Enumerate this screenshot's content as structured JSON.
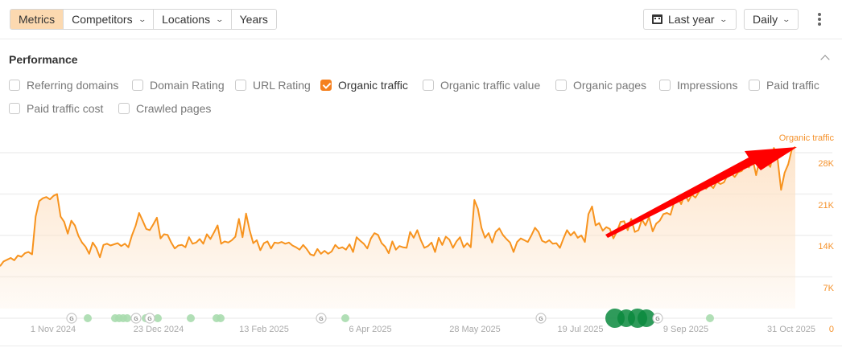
{
  "toolbar": {
    "tabs": [
      {
        "label": "Metrics",
        "active": true,
        "dropdown": false
      },
      {
        "label": "Competitors",
        "active": false,
        "dropdown": true
      },
      {
        "label": "Locations",
        "active": false,
        "dropdown": true
      },
      {
        "label": "Years",
        "active": false,
        "dropdown": false
      }
    ],
    "date_range": {
      "icon": "calendar-icon",
      "label": "Last year"
    },
    "interval": {
      "label": "Daily"
    },
    "more_icon": "kebab-menu-icon"
  },
  "performance": {
    "title": "Performance",
    "collapse_icon": "chevron-up-icon",
    "metrics": [
      {
        "label": "Referring domains",
        "checked": false
      },
      {
        "label": "Domain Rating",
        "checked": false
      },
      {
        "label": "URL Rating",
        "checked": false
      },
      {
        "label": "Organic traffic",
        "checked": true
      },
      {
        "label": "Organic traffic value",
        "checked": false
      },
      {
        "label": "Organic pages",
        "checked": false
      },
      {
        "label": "Impressions",
        "checked": false
      },
      {
        "label": "Paid traffic",
        "checked": false
      },
      {
        "label": "Paid traffic cost",
        "checked": false
      },
      {
        "label": "Crawled pages",
        "checked": false
      }
    ]
  },
  "colors": {
    "accent": "#f5801f",
    "line": "#f7931e",
    "fill": "#fde3c8",
    "annotation_arrow": "#ff0000",
    "event_green": "#0b8a3e",
    "event_green_light": "#a9dcae"
  },
  "chart_data": {
    "type": "area",
    "title": "",
    "series": [
      {
        "name": "Organic traffic",
        "values": [
          8800,
          9600,
          9900,
          10200,
          9800,
          10600,
          10400,
          11000,
          11200,
          10800,
          17200,
          19800,
          20300,
          20500,
          20100,
          20700,
          21000,
          17200,
          16300,
          14300,
          16500,
          15700,
          13900,
          12800,
          12100,
          10900,
          12800,
          11900,
          10300,
          12400,
          12600,
          12300,
          12500,
          12700,
          12200,
          12600,
          12000,
          14000,
          15600,
          17800,
          16500,
          15100,
          14900,
          15900,
          17000,
          13500,
          14200,
          14100,
          12800,
          11800,
          12300,
          12400,
          12000,
          13700,
          12600,
          12800,
          13400,
          12600,
          14200,
          13400,
          14500,
          15700,
          12600,
          13000,
          12800,
          13200,
          13800,
          16800,
          13700,
          17700,
          14900,
          12700,
          13200,
          11500,
          12700,
          13000,
          11800,
          12800,
          12700,
          12900,
          12600,
          12800,
          12300,
          12000,
          11600,
          12400,
          11700,
          10800,
          10600,
          11700,
          10900,
          11400,
          10900,
          11300,
          12400,
          11800,
          12000,
          11600,
          12500,
          11200,
          13700,
          13100,
          12600,
          11800,
          13500,
          14400,
          14100,
          12700,
          12100,
          11000,
          13000,
          11600,
          12200,
          12000,
          11900,
          14600,
          13600,
          14900,
          13200,
          11900,
          12200,
          12800,
          11200,
          13600,
          12400,
          13800,
          13300,
          11900,
          13000,
          13700,
          12000,
          12700,
          12000,
          20000,
          18500,
          15300,
          13600,
          14400,
          12800,
          14600,
          15200,
          14100,
          13400,
          12800,
          11200,
          12900,
          13500,
          13200,
          12900,
          14000,
          15300,
          14600,
          13100,
          12800,
          13200,
          12600,
          12700,
          11900,
          13500,
          14900,
          14000,
          14600,
          13600,
          14000,
          12900,
          17600,
          18900,
          15700,
          16100,
          14800,
          15400,
          15100,
          13500,
          14700,
          16300,
          16400,
          14900,
          16800,
          14600,
          14900,
          16700,
          15700,
          17100,
          14700,
          16000,
          16500,
          17600,
          17800,
          17500,
          19600,
          20500,
          19300,
          21000,
          19800,
          20900,
          20400,
          21400,
          22300,
          21900,
          22600,
          22000,
          23100,
          22700,
          23000,
          24200,
          24500,
          23900,
          24700,
          24900,
          26000,
          25500,
          27100,
          24200,
          26900,
          27200,
          26300,
          25600,
          28800,
          27200,
          21700,
          24600,
          26000,
          28500,
          29000
        ],
        "sampling": "approx. every ~1.5 days, 1 Nov 2024 – 31 Oct 2025"
      }
    ],
    "xlabel": "",
    "ylabel": "Organic traffic",
    "x_tick_labels": [
      "1 Nov 2024",
      "23 Dec 2024",
      "13 Feb 2025",
      "6 Apr 2025",
      "28 May 2025",
      "19 Jul 2025",
      "9 Sep 2025",
      "31 Oct 2025"
    ],
    "y_tick_labels": [
      "0",
      "7K",
      "14K",
      "21K",
      "28K"
    ],
    "y_ticks": [
      0,
      7000,
      14000,
      21000,
      28000
    ],
    "ylim": [
      0,
      28000
    ],
    "grid": true,
    "legend_position": "top-right",
    "series_label": "Organic traffic",
    "annotations": [
      {
        "type": "arrow",
        "color": "#ff0000",
        "from_date": "mid Jul 2025",
        "to": "Organic traffic label (top right)",
        "meaning": "upward trend"
      }
    ],
    "event_markers": {
      "google_updates_G": [
        "~Nov 2024",
        "~Dec 2024",
        "~Dec 2024",
        "~Mar 2025",
        "~Jul 2025",
        "~Sep 2025"
      ],
      "green_dots_small": [
        "~Nov 2024",
        "~Dec 2024 (x4)",
        "~Jan 2025",
        "~Jan 2025 (x2)",
        "~Mar 2025",
        "~Sep 2025"
      ],
      "green_dots_large": [
        "~Aug 2025 (x2 clusters)"
      ]
    }
  }
}
